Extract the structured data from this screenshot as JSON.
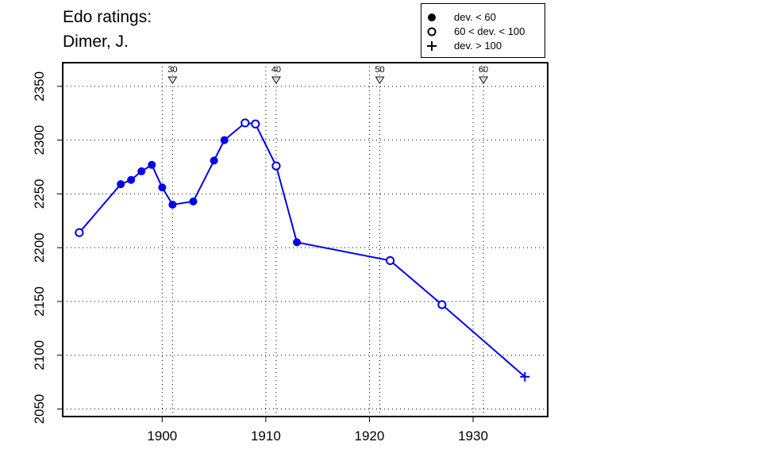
{
  "title_lines": [
    "Edo ratings:",
    "Dimer, J."
  ],
  "legend": {
    "items": [
      {
        "symbol": "filled-circle",
        "label": "dev. < 60"
      },
      {
        "symbol": "open-circle",
        "label": "60 < dev. < 100"
      },
      {
        "symbol": "plus",
        "label": "dev. > 100"
      }
    ]
  },
  "chart_data": {
    "type": "line",
    "title": "Edo ratings:\nDimer, J.",
    "xlabel": "",
    "ylabel": "",
    "xlim": [
      1890.4,
      1937.2
    ],
    "ylim": [
      2043,
      2372
    ],
    "x_ticks": [
      1900,
      1910,
      1920,
      1930
    ],
    "y_ticks": [
      2050,
      2100,
      2150,
      2200,
      2250,
      2300,
      2350
    ],
    "grid": "dotted",
    "legend_position": "top-right",
    "color": "#0000ee",
    "age_markers": [
      {
        "label": "30",
        "x": 1901
      },
      {
        "label": "40",
        "x": 1911
      },
      {
        "label": "50",
        "x": 1921
      },
      {
        "label": "60",
        "x": 1931
      }
    ],
    "series": [
      {
        "points": [
          {
            "x": 1892,
            "y": 2214,
            "marker": "open-circle"
          },
          {
            "x": 1896,
            "y": 2259,
            "marker": "filled-circle"
          },
          {
            "x": 1897,
            "y": 2263,
            "marker": "filled-circle"
          },
          {
            "x": 1898,
            "y": 2271,
            "marker": "filled-circle"
          },
          {
            "x": 1899,
            "y": 2277,
            "marker": "filled-circle"
          },
          {
            "x": 1900,
            "y": 2256,
            "marker": "filled-circle"
          },
          {
            "x": 1901,
            "y": 2240,
            "marker": "filled-circle"
          },
          {
            "x": 1903,
            "y": 2243,
            "marker": "filled-circle"
          },
          {
            "x": 1905,
            "y": 2281,
            "marker": "filled-circle"
          },
          {
            "x": 1906,
            "y": 2300,
            "marker": "filled-circle"
          },
          {
            "x": 1908,
            "y": 2316,
            "marker": "open-circle"
          },
          {
            "x": 1909,
            "y": 2315,
            "marker": "open-circle"
          },
          {
            "x": 1911,
            "y": 2276,
            "marker": "open-circle"
          },
          {
            "x": 1913,
            "y": 2205,
            "marker": "filled-circle"
          },
          {
            "x": 1922,
            "y": 2188,
            "marker": "open-circle"
          },
          {
            "x": 1927,
            "y": 2147,
            "marker": "open-circle"
          },
          {
            "x": 1935,
            "y": 2080,
            "marker": "plus"
          }
        ]
      }
    ]
  }
}
